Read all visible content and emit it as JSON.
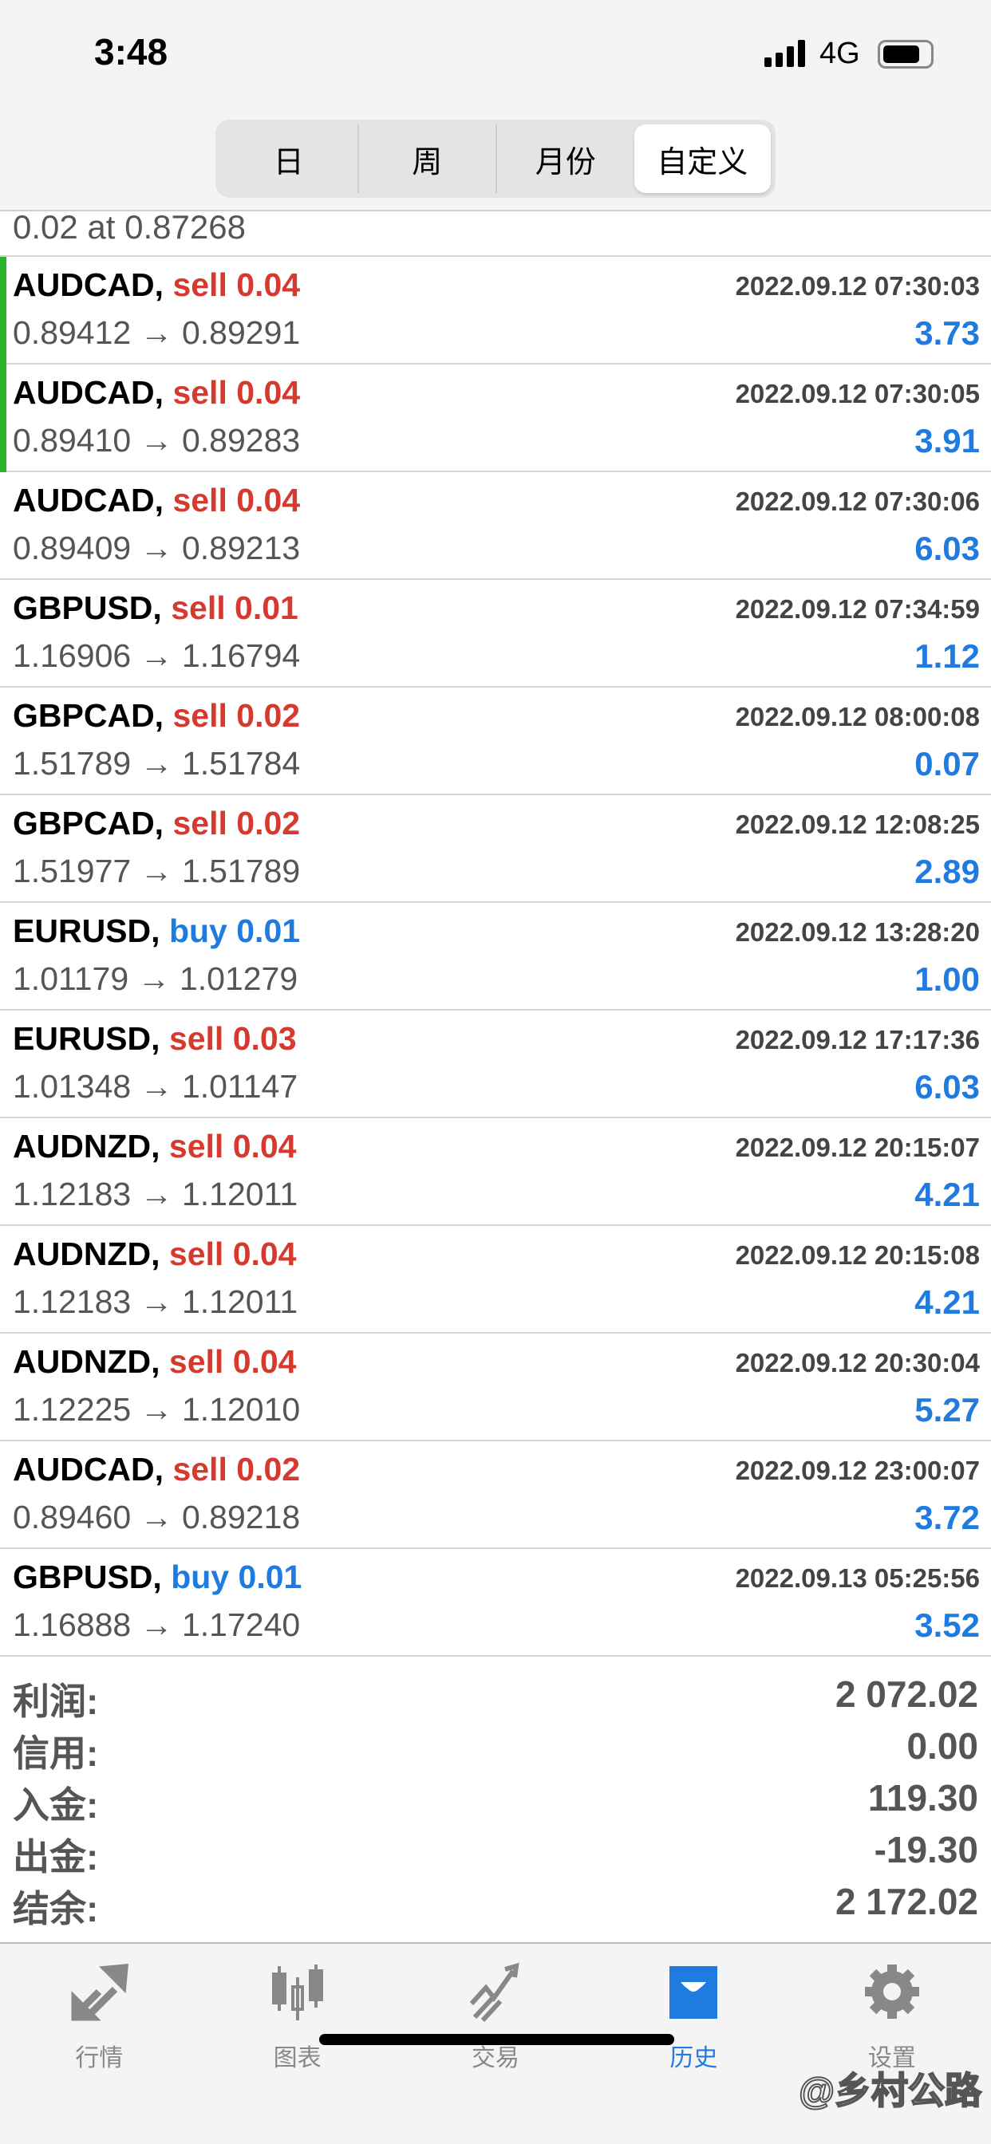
{
  "status": {
    "time": "3:48",
    "network": "4G",
    "battery_percent": 80
  },
  "segments": [
    {
      "label": "日"
    },
    {
      "label": "周"
    },
    {
      "label": "月份"
    },
    {
      "label": "自定义",
      "active": true
    }
  ],
  "partial_row": "0.02 at 0.87268",
  "deals": [
    {
      "symbol": "AUDCAD,",
      "side": "sell",
      "volume": "0.04",
      "time": "2022.09.12 07:30:03",
      "prices": "0.89412 → 0.89291",
      "profit": "3.73",
      "marked": true
    },
    {
      "symbol": "AUDCAD,",
      "side": "sell",
      "volume": "0.04",
      "time": "2022.09.12 07:30:05",
      "prices": "0.89410 → 0.89283",
      "profit": "3.91",
      "marked": true
    },
    {
      "symbol": "AUDCAD,",
      "side": "sell",
      "volume": "0.04",
      "time": "2022.09.12 07:30:06",
      "prices": "0.89409 → 0.89213",
      "profit": "6.03"
    },
    {
      "symbol": "GBPUSD,",
      "side": "sell",
      "volume": "0.01",
      "time": "2022.09.12 07:34:59",
      "prices": "1.16906 → 1.16794",
      "profit": "1.12"
    },
    {
      "symbol": "GBPCAD,",
      "side": "sell",
      "volume": "0.02",
      "time": "2022.09.12 08:00:08",
      "prices": "1.51789 → 1.51784",
      "profit": "0.07"
    },
    {
      "symbol": "GBPCAD,",
      "side": "sell",
      "volume": "0.02",
      "time": "2022.09.12 12:08:25",
      "prices": "1.51977 → 1.51789",
      "profit": "2.89"
    },
    {
      "symbol": "EURUSD,",
      "side": "buy",
      "volume": "0.01",
      "time": "2022.09.12 13:28:20",
      "prices": "1.01179 → 1.01279",
      "profit": "1.00"
    },
    {
      "symbol": "EURUSD,",
      "side": "sell",
      "volume": "0.03",
      "time": "2022.09.12 17:17:36",
      "prices": "1.01348 → 1.01147",
      "profit": "6.03"
    },
    {
      "symbol": "AUDNZD,",
      "side": "sell",
      "volume": "0.04",
      "time": "2022.09.12 20:15:07",
      "prices": "1.12183 → 1.12011",
      "profit": "4.21"
    },
    {
      "symbol": "AUDNZD,",
      "side": "sell",
      "volume": "0.04",
      "time": "2022.09.12 20:15:08",
      "prices": "1.12183 → 1.12011",
      "profit": "4.21"
    },
    {
      "symbol": "AUDNZD,",
      "side": "sell",
      "volume": "0.04",
      "time": "2022.09.12 20:30:04",
      "prices": "1.12225 → 1.12010",
      "profit": "5.27"
    },
    {
      "symbol": "AUDCAD,",
      "side": "sell",
      "volume": "0.02",
      "time": "2022.09.12 23:00:07",
      "prices": "0.89460 → 0.89218",
      "profit": "3.72"
    },
    {
      "symbol": "GBPUSD,",
      "side": "buy",
      "volume": "0.01",
      "time": "2022.09.13 05:25:56",
      "prices": "1.16888 → 1.17240",
      "profit": "3.52"
    }
  ],
  "summary": [
    {
      "label": "利润:",
      "value": "2 072.02"
    },
    {
      "label": "信用:",
      "value": "0.00"
    },
    {
      "label": "入金:",
      "value": "119.30"
    },
    {
      "label": "出金:",
      "value": "-19.30"
    },
    {
      "label": "结余:",
      "value": "2 172.02"
    }
  ],
  "tabs": [
    {
      "label": "行情",
      "icon": "quotes-arrows-icon"
    },
    {
      "label": "图表",
      "icon": "candlestick-icon"
    },
    {
      "label": "交易",
      "icon": "trade-chart-icon"
    },
    {
      "label": "历史",
      "icon": "inbox-icon",
      "active": true
    },
    {
      "label": "设置",
      "icon": "gear-icon"
    }
  ],
  "watermark": "@乡村公路",
  "colors": {
    "sell": "#d63a2f",
    "buy": "#1f7be0",
    "profit": "#1f7be0",
    "marker": "#2bb52b",
    "active_tab": "#1f7be0"
  }
}
